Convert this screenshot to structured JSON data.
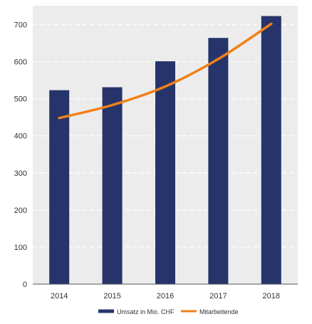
{
  "colors": {
    "plot_background": "#ececec",
    "gridline": "#ffffff",
    "bar": "#26346b",
    "line": "#f08019"
  },
  "chart_data": {
    "type": "bar",
    "categories": [
      "2014",
      "2015",
      "2016",
      "2017",
      "2018"
    ],
    "ylim": [
      0,
      750
    ],
    "yticks": [
      0,
      100,
      200,
      300,
      400,
      500,
      600,
      700
    ],
    "ytick_labels": [
      "0",
      "100",
      "200",
      "300",
      "400",
      "500",
      "600",
      "700"
    ],
    "grid": true,
    "legend_position": "bottom",
    "series": [
      {
        "name": "Umsatz in Mio. CHF",
        "type": "bar",
        "color": "#26346b",
        "values": [
          523,
          531,
          601,
          664,
          723
        ]
      },
      {
        "name": "Mitarbeitende",
        "type": "line",
        "color": "#f08019",
        "values": [
          448,
          483,
          533,
          607,
          702
        ]
      }
    ]
  }
}
